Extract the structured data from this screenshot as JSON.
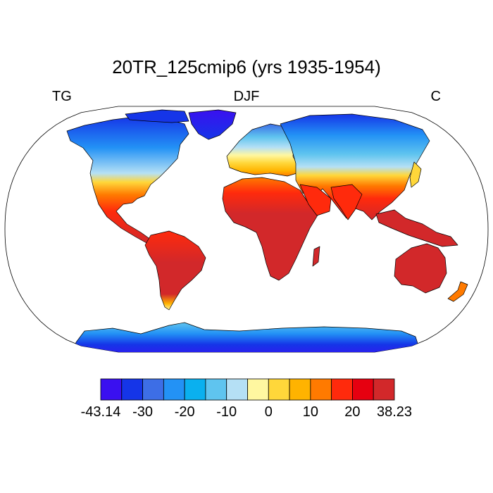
{
  "title": "20TR_125cmip6 (yrs 1935-1954)",
  "left_label": "TG",
  "center_label": "DJF",
  "right_label": "C",
  "colorbar": {
    "colors": [
      "#3a10f0",
      "#1535e8",
      "#3d6ee6",
      "#2392f5",
      "#0ab0ef",
      "#5fc4ef",
      "#b5e0f5",
      "#fff7a0",
      "#ffd73a",
      "#ffb300",
      "#ff7a00",
      "#ff2a0c",
      "#e60010",
      "#d2282a"
    ],
    "tick_labels": [
      "-43.14",
      "-30",
      "-20",
      "-10",
      "0",
      "10",
      "20",
      "38.23"
    ]
  },
  "map": {
    "projection": "robinson",
    "ocean_color": "#ffffff",
    "coastline_color": "#000000"
  }
}
